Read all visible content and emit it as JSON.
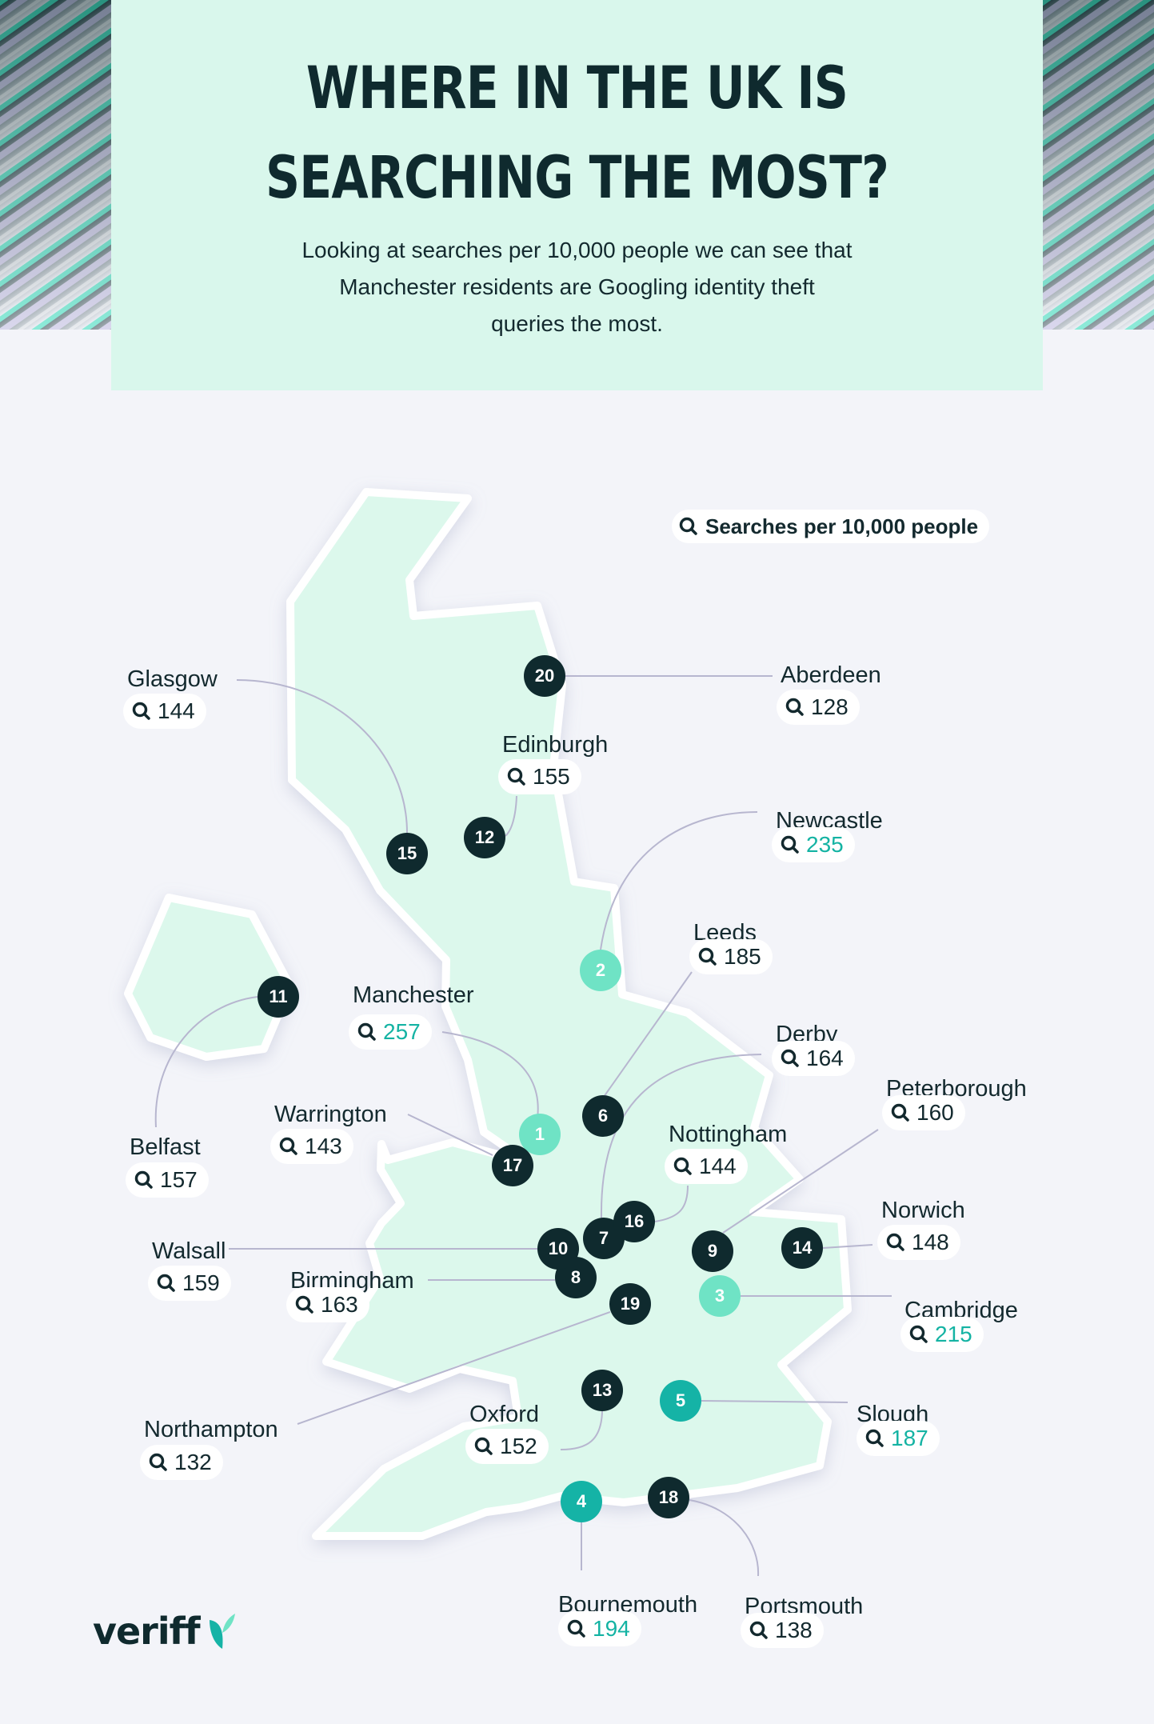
{
  "header": {
    "title_line1": "WHERE IN THE UK IS",
    "title_line2": "SEARCHING THE MOST?",
    "subtitle_line1": "Looking at searches per 10,000 people we can see that",
    "subtitle_line2": "Manchester residents are Googling identity theft",
    "subtitle_line3": "queries the most."
  },
  "legend": {
    "label": "Searches per 10,000 people",
    "icon": "search-icon"
  },
  "colors": {
    "header_bg": "#d9f7ec",
    "page_bg": "#f3f4f9",
    "land": "#dcf8ec",
    "marker_dark": "#0f2a2e",
    "marker_light": "#6fe3c5",
    "marker_teal": "#15b3a6",
    "highlight_text": "#14b3a3",
    "leader": "#b7b6cf"
  },
  "cities": [
    {
      "rank": "1",
      "name": "Manchester",
      "value": "257",
      "tier": "light"
    },
    {
      "rank": "2",
      "name": "Newcastle",
      "value": "235",
      "tier": "light"
    },
    {
      "rank": "3",
      "name": "Cambridge",
      "value": "215",
      "tier": "light"
    },
    {
      "rank": "4",
      "name": "Bournemouth",
      "value": "194",
      "tier": "teal"
    },
    {
      "rank": "5",
      "name": "Slough",
      "value": "187",
      "tier": "teal"
    },
    {
      "rank": "6",
      "name": "Leeds",
      "value": "185",
      "tier": "dark"
    },
    {
      "rank": "7",
      "name": "Derby",
      "value": "164",
      "tier": "dark"
    },
    {
      "rank": "8",
      "name": "Birmingham",
      "value": "163",
      "tier": "dark"
    },
    {
      "rank": "9",
      "name": "Peterborough",
      "value": "160",
      "tier": "dark"
    },
    {
      "rank": "10",
      "name": "Walsall",
      "value": "159",
      "tier": "dark"
    },
    {
      "rank": "11",
      "name": "Belfast",
      "value": "157",
      "tier": "dark"
    },
    {
      "rank": "12",
      "name": "Edinburgh",
      "value": "155",
      "tier": "dark"
    },
    {
      "rank": "13",
      "name": "Oxford",
      "value": "152",
      "tier": "dark"
    },
    {
      "rank": "14",
      "name": "Norwich",
      "value": "148",
      "tier": "dark"
    },
    {
      "rank": "15",
      "name": "Glasgow",
      "value": "144",
      "tier": "dark"
    },
    {
      "rank": "16",
      "name": "Nottingham",
      "value": "144",
      "tier": "dark"
    },
    {
      "rank": "17",
      "name": "Warrington",
      "value": "143",
      "tier": "dark"
    },
    {
      "rank": "18",
      "name": "Portsmouth",
      "value": "138",
      "tier": "dark"
    },
    {
      "rank": "19",
      "name": "Northampton",
      "value": "132",
      "tier": "dark"
    },
    {
      "rank": "20",
      "name": "Aberdeen",
      "value": "128",
      "tier": "dark"
    }
  ],
  "brand": {
    "logo_text": "veriff"
  }
}
